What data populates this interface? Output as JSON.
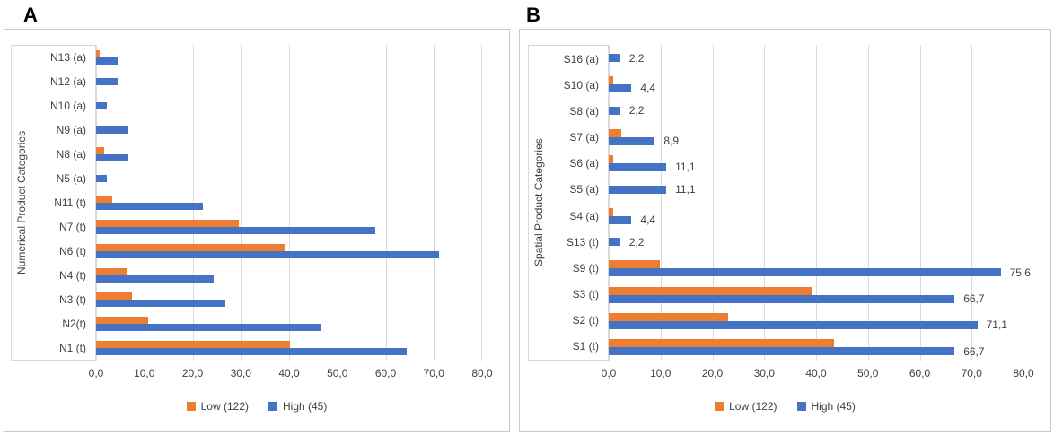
{
  "figure": {
    "background": "#ffffff",
    "panel_labels": [
      "A",
      "B"
    ]
  },
  "colors": {
    "low": "#ED7D31",
    "high": "#4472C4",
    "grid": "#D9D9D9",
    "panel_border": "#C9C9C9",
    "text": "#404040"
  },
  "chart_data": [
    {
      "type": "bar",
      "orientation": "horizontal",
      "panel_label": "A",
      "ylabel": "Numerical Product Categories",
      "xlabel": "",
      "xlim": [
        0,
        80
      ],
      "grid": true,
      "legend_position": "bottom",
      "x_tick_labels": [
        "0,0",
        "10,0",
        "20,0",
        "30,0",
        "40,0",
        "50,0",
        "60,0",
        "70,0",
        "80,0"
      ],
      "categories": [
        "N13 (a)",
        "N12 (a)",
        "N10 (a)",
        "N9 (a)",
        "N8 (a)",
        "N5 (a)",
        "N11 (t)",
        "N7 (t)",
        "N6 (t)",
        "N4 (t)",
        "N3 (t)",
        "N2(t)",
        "N1 (t)"
      ],
      "series": [
        {
          "name": "Low (122)",
          "color": "#ED7D31",
          "values": [
            0.8,
            0,
            0,
            0,
            1.6,
            0,
            3.3,
            29.5,
            39.3,
            6.6,
            7.4,
            10.7,
            40.2
          ]
        },
        {
          "name": "High (45)",
          "color": "#4472C4",
          "values": [
            4.4,
            4.4,
            2.2,
            6.7,
            6.7,
            2.2,
            22.2,
            57.8,
            71.1,
            24.4,
            26.7,
            46.7,
            64.4
          ]
        }
      ],
      "data_labels": null
    },
    {
      "type": "bar",
      "orientation": "horizontal",
      "panel_label": "B",
      "ylabel": "Spatial Product Categories",
      "xlabel": "",
      "xlim": [
        0,
        80
      ],
      "grid": true,
      "legend_position": "bottom",
      "x_tick_labels": [
        "0,0",
        "10,0",
        "20,0",
        "30,0",
        "40,0",
        "50,0",
        "60,0",
        "70,0",
        "80,0"
      ],
      "categories": [
        "S16 (a)",
        "S10 (a)",
        "S8 (a)",
        "S7 (a)",
        "S6 (a)",
        "S5 (a)",
        "S4 (a)",
        "S13 (t)",
        "S9 (t)",
        "S3 (t)",
        "S2 (t)",
        "S1 (t)"
      ],
      "series": [
        {
          "name": "Low (122)",
          "color": "#ED7D31",
          "values": [
            0,
            0.8,
            0,
            2.5,
            0.8,
            0,
            0.8,
            0,
            9.8,
            39.3,
            23.0,
            43.4
          ]
        },
        {
          "name": "High (45)",
          "color": "#4472C4",
          "values": [
            2.2,
            4.4,
            2.2,
            8.9,
            11.1,
            11.1,
            4.4,
            2.2,
            75.6,
            66.7,
            71.1,
            66.7
          ]
        }
      ],
      "data_labels": {
        "on_series": "High (45)",
        "values": [
          "2,2",
          "4,4",
          "2,2",
          "8,9",
          "11,1",
          "11,1",
          "4,4",
          "2,2",
          "75,6",
          "66,7",
          "71,1",
          "66,7"
        ]
      }
    }
  ]
}
